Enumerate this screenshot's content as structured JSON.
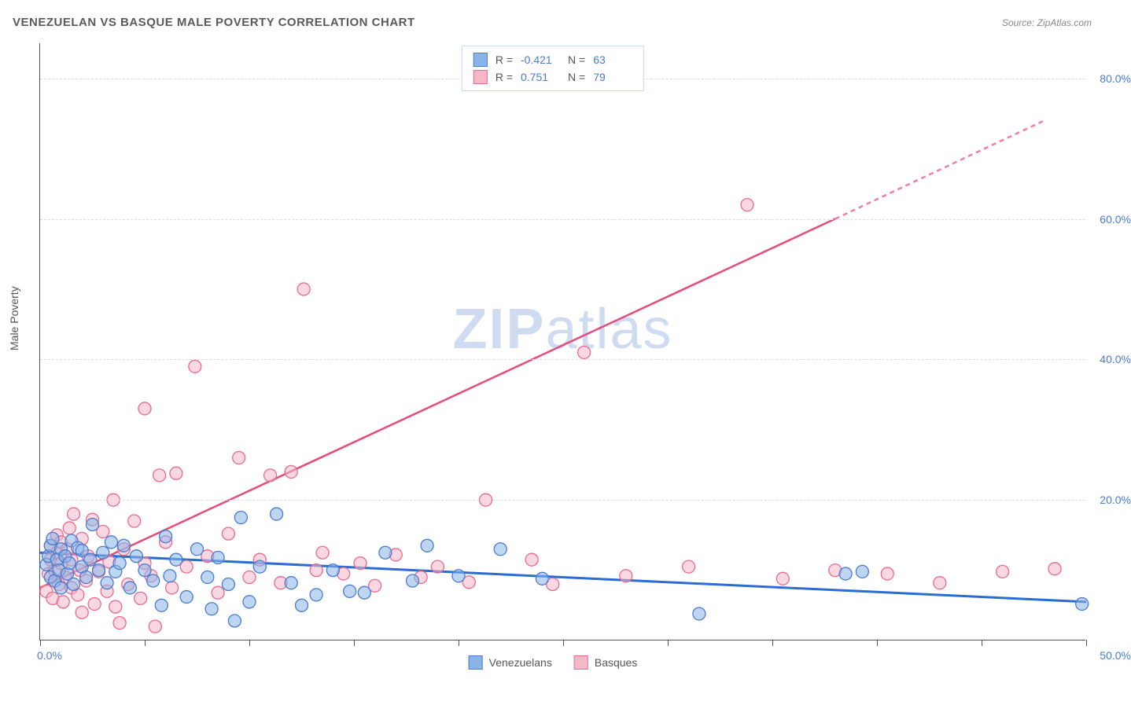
{
  "title": "VENEZUELAN VS BASQUE MALE POVERTY CORRELATION CHART",
  "source": "Source: ZipAtlas.com",
  "y_axis_title": "Male Poverty",
  "watermark_bold": "ZIP",
  "watermark_light": "atlas",
  "chart": {
    "type": "scatter",
    "xlim": [
      0,
      50
    ],
    "ylim": [
      0,
      85
    ],
    "y_ticks": [
      20,
      40,
      60,
      80
    ],
    "y_tick_labels": [
      "20.0%",
      "40.0%",
      "60.0%",
      "80.0%"
    ],
    "x_ticks": [
      0,
      5,
      10,
      15,
      20,
      25,
      30,
      35,
      40,
      45,
      50
    ],
    "x_label_min": "0.0%",
    "x_label_max": "50.0%",
    "background_color": "#ffffff",
    "grid_color": "#dddddd",
    "axis_color": "#555555",
    "tick_label_color": "#4a7bd0",
    "marker_radius": 8,
    "marker_opacity": 0.55,
    "series": [
      {
        "name": "Venezuelans",
        "label": "Venezuelans",
        "fill_color": "#89b4e8",
        "stroke_color": "#4a7bd0",
        "line_color": "#2b6cd4",
        "line_width": 3,
        "R": "-0.421",
        "N": "63",
        "trend": {
          "x1": 0,
          "y1": 12.5,
          "x2": 50,
          "y2": 5.5
        },
        "points": [
          [
            0.3,
            10.8
          ],
          [
            0.4,
            12
          ],
          [
            0.5,
            9
          ],
          [
            0.5,
            13.5
          ],
          [
            0.6,
            14.5
          ],
          [
            0.7,
            8.5
          ],
          [
            0.8,
            11.5
          ],
          [
            0.9,
            10
          ],
          [
            1.0,
            13
          ],
          [
            1.0,
            7.5
          ],
          [
            1.2,
            12
          ],
          [
            1.3,
            9.5
          ],
          [
            1.4,
            11
          ],
          [
            1.5,
            14.2
          ],
          [
            1.6,
            8
          ],
          [
            1.8,
            13.2
          ],
          [
            2.0,
            10.5
          ],
          [
            2.0,
            12.8
          ],
          [
            2.2,
            9
          ],
          [
            2.4,
            11.5
          ],
          [
            2.5,
            16.5
          ],
          [
            2.8,
            10
          ],
          [
            3.0,
            12.5
          ],
          [
            3.2,
            8.2
          ],
          [
            3.4,
            14
          ],
          [
            3.6,
            9.8
          ],
          [
            3.8,
            11
          ],
          [
            4.0,
            13.5
          ],
          [
            4.3,
            7.5
          ],
          [
            4.6,
            12
          ],
          [
            5.0,
            10
          ],
          [
            5.4,
            8.5
          ],
          [
            5.8,
            5
          ],
          [
            6.0,
            14.8
          ],
          [
            6.2,
            9.2
          ],
          [
            6.5,
            11.5
          ],
          [
            7.0,
            6.2
          ],
          [
            7.5,
            13
          ],
          [
            8.0,
            9
          ],
          [
            8.2,
            4.5
          ],
          [
            8.5,
            11.8
          ],
          [
            9.0,
            8
          ],
          [
            9.3,
            2.8
          ],
          [
            9.6,
            17.5
          ],
          [
            10.0,
            5.5
          ],
          [
            10.5,
            10.5
          ],
          [
            11.3,
            18
          ],
          [
            12.0,
            8.2
          ],
          [
            12.5,
            5
          ],
          [
            13.2,
            6.5
          ],
          [
            14.0,
            10
          ],
          [
            14.8,
            7
          ],
          [
            15.5,
            6.8
          ],
          [
            16.5,
            12.5
          ],
          [
            17.8,
            8.5
          ],
          [
            18.5,
            13.5
          ],
          [
            20.0,
            9.2
          ],
          [
            22.0,
            13
          ],
          [
            24.0,
            8.8
          ],
          [
            31.5,
            3.8
          ],
          [
            38.5,
            9.5
          ],
          [
            39.3,
            9.8
          ],
          [
            49.8,
            5.2
          ]
        ]
      },
      {
        "name": "Basques",
        "label": "Basques",
        "fill_color": "#f4b8c9",
        "stroke_color": "#e86a8f",
        "line_color": "#e84a7a",
        "line_width": 2.5,
        "R": "0.751",
        "N": "79",
        "trend": {
          "x1": 0,
          "y1": 7.5,
          "x2": 38,
          "y2": 60
        },
        "trend_dash": {
          "x1": 38,
          "y1": 60,
          "x2": 48,
          "y2": 74
        },
        "points": [
          [
            0.3,
            7
          ],
          [
            0.4,
            9.5
          ],
          [
            0.5,
            11.5
          ],
          [
            0.5,
            13.5
          ],
          [
            0.6,
            6
          ],
          [
            0.7,
            10
          ],
          [
            0.8,
            12.5
          ],
          [
            0.8,
            15
          ],
          [
            0.9,
            8
          ],
          [
            1.0,
            11
          ],
          [
            1.0,
            14
          ],
          [
            1.1,
            5.5
          ],
          [
            1.2,
            9
          ],
          [
            1.3,
            13
          ],
          [
            1.4,
            16
          ],
          [
            1.5,
            7.5
          ],
          [
            1.5,
            11.5
          ],
          [
            1.6,
            18
          ],
          [
            1.8,
            6.5
          ],
          [
            1.9,
            10
          ],
          [
            2.0,
            14.5
          ],
          [
            2.0,
            4
          ],
          [
            2.2,
            8.5
          ],
          [
            2.3,
            12
          ],
          [
            2.5,
            17.2
          ],
          [
            2.6,
            5.2
          ],
          [
            2.8,
            9.8
          ],
          [
            3.0,
            15.5
          ],
          [
            3.2,
            7
          ],
          [
            3.3,
            11.2
          ],
          [
            3.5,
            20
          ],
          [
            3.6,
            4.8
          ],
          [
            3.8,
            2.5
          ],
          [
            4.0,
            13
          ],
          [
            4.2,
            8
          ],
          [
            4.5,
            17
          ],
          [
            4.8,
            6
          ],
          [
            5.0,
            11
          ],
          [
            5.0,
            33
          ],
          [
            5.3,
            9.2
          ],
          [
            5.5,
            2
          ],
          [
            5.7,
            23.5
          ],
          [
            6.0,
            14
          ],
          [
            6.3,
            7.5
          ],
          [
            6.5,
            23.8
          ],
          [
            7.0,
            10.5
          ],
          [
            7.4,
            39
          ],
          [
            8.0,
            12
          ],
          [
            8.5,
            6.8
          ],
          [
            9.0,
            15.2
          ],
          [
            9.5,
            26
          ],
          [
            10.0,
            9
          ],
          [
            10.5,
            11.5
          ],
          [
            11.0,
            23.5
          ],
          [
            11.5,
            8.2
          ],
          [
            12.0,
            24
          ],
          [
            12.6,
            50
          ],
          [
            13.2,
            10
          ],
          [
            13.5,
            12.5
          ],
          [
            14.5,
            9.5
          ],
          [
            15.3,
            11
          ],
          [
            16.0,
            7.8
          ],
          [
            17.0,
            12.2
          ],
          [
            18.2,
            9
          ],
          [
            19.0,
            10.5
          ],
          [
            20.5,
            8.3
          ],
          [
            21.3,
            20
          ],
          [
            23.5,
            11.5
          ],
          [
            24.5,
            8
          ],
          [
            26.0,
            41
          ],
          [
            28.0,
            9.2
          ],
          [
            31.0,
            10.5
          ],
          [
            33.8,
            62
          ],
          [
            35.5,
            8.8
          ],
          [
            38.0,
            10
          ],
          [
            40.5,
            9.5
          ],
          [
            43.0,
            8.2
          ],
          [
            46.0,
            9.8
          ],
          [
            48.5,
            10.2
          ]
        ]
      }
    ]
  },
  "legend_top_labels": {
    "R_prefix": "R =",
    "N_prefix": "N ="
  },
  "legend_bottom": [
    {
      "label": "Venezuelans",
      "fill": "#89b4e8",
      "stroke": "#4a7bd0"
    },
    {
      "label": "Basques",
      "fill": "#f4b8c9",
      "stroke": "#e86a8f"
    }
  ]
}
